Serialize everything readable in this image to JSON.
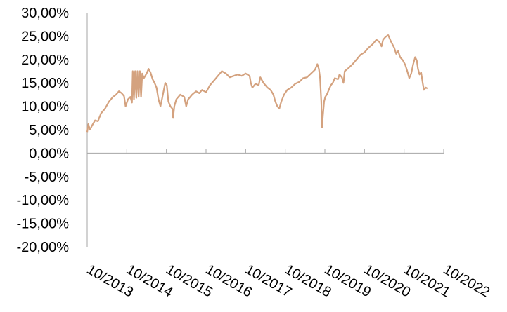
{
  "chart_data": {
    "type": "line",
    "title": "",
    "xlabel": "",
    "ylabel": "",
    "ylim": [
      -0.2,
      0.3
    ],
    "y_ticks": [
      {
        "value": 0.3,
        "label": "30,00%"
      },
      {
        "value": 0.25,
        "label": "25,00%"
      },
      {
        "value": 0.2,
        "label": "20,00%"
      },
      {
        "value": 0.15,
        "label": "15,00%"
      },
      {
        "value": 0.1,
        "label": "10,00%"
      },
      {
        "value": 0.05,
        "label": "5,00%"
      },
      {
        "value": 0.0,
        "label": "0,00%"
      },
      {
        "value": -0.05,
        "label": "-5,00%"
      },
      {
        "value": -0.1,
        "label": "-10,00%"
      },
      {
        "value": -0.15,
        "label": "-15,00%"
      },
      {
        "value": -0.2,
        "label": "-20,00%"
      }
    ],
    "x_ticks": [
      "10/2013",
      "10/2014",
      "10/2015",
      "10/2016",
      "10/2017",
      "10/2018",
      "10/2019",
      "10/2020",
      "10/2021",
      "10/2022"
    ],
    "xlim": [
      2013.75,
      2022.75
    ],
    "grid": false,
    "legend": "none",
    "series": [
      {
        "color": "#d4a27f",
        "points": [
          [
            2013.75,
            0.045
          ],
          [
            2013.78,
            0.062
          ],
          [
            2013.82,
            0.05
          ],
          [
            2013.88,
            0.06
          ],
          [
            2013.95,
            0.07
          ],
          [
            2014.02,
            0.068
          ],
          [
            2014.1,
            0.085
          ],
          [
            2014.2,
            0.095
          ],
          [
            2014.3,
            0.11
          ],
          [
            2014.4,
            0.12
          ],
          [
            2014.48,
            0.125
          ],
          [
            2014.55,
            0.132
          ],
          [
            2014.62,
            0.128
          ],
          [
            2014.68,
            0.122
          ],
          [
            2014.72,
            0.1
          ],
          [
            2014.78,
            0.115
          ],
          [
            2014.84,
            0.12
          ],
          [
            2014.88,
            0.108
          ],
          [
            2014.9,
            0.175
          ],
          [
            2014.93,
            0.115
          ],
          [
            2014.96,
            0.175
          ],
          [
            2014.99,
            0.118
          ],
          [
            2015.02,
            0.175
          ],
          [
            2015.05,
            0.12
          ],
          [
            2015.08,
            0.175
          ],
          [
            2015.11,
            0.12
          ],
          [
            2015.14,
            0.17
          ],
          [
            2015.18,
            0.16
          ],
          [
            2015.25,
            0.17
          ],
          [
            2015.3,
            0.18
          ],
          [
            2015.35,
            0.172
          ],
          [
            2015.4,
            0.158
          ],
          [
            2015.45,
            0.15
          ],
          [
            2015.5,
            0.14
          ],
          [
            2015.55,
            0.115
          ],
          [
            2015.6,
            0.1
          ],
          [
            2015.65,
            0.12
          ],
          [
            2015.72,
            0.15
          ],
          [
            2015.76,
            0.145
          ],
          [
            2015.8,
            0.11
          ],
          [
            2015.85,
            0.1
          ],
          [
            2015.9,
            0.095
          ],
          [
            2015.92,
            0.075
          ],
          [
            2015.95,
            0.1
          ],
          [
            2016.0,
            0.115
          ],
          [
            2016.1,
            0.125
          ],
          [
            2016.2,
            0.12
          ],
          [
            2016.25,
            0.1
          ],
          [
            2016.3,
            0.115
          ],
          [
            2016.4,
            0.125
          ],
          [
            2016.5,
            0.132
          ],
          [
            2016.58,
            0.128
          ],
          [
            2016.65,
            0.135
          ],
          [
            2016.75,
            0.13
          ],
          [
            2016.85,
            0.145
          ],
          [
            2016.95,
            0.155
          ],
          [
            2017.05,
            0.165
          ],
          [
            2017.15,
            0.175
          ],
          [
            2017.25,
            0.17
          ],
          [
            2017.35,
            0.162
          ],
          [
            2017.45,
            0.165
          ],
          [
            2017.55,
            0.168
          ],
          [
            2017.65,
            0.165
          ],
          [
            2017.75,
            0.17
          ],
          [
            2017.85,
            0.165
          ],
          [
            2017.88,
            0.15
          ],
          [
            2017.92,
            0.14
          ],
          [
            2018.0,
            0.148
          ],
          [
            2018.08,
            0.145
          ],
          [
            2018.12,
            0.162
          ],
          [
            2018.2,
            0.15
          ],
          [
            2018.3,
            0.14
          ],
          [
            2018.38,
            0.135
          ],
          [
            2018.45,
            0.125
          ],
          [
            2018.5,
            0.11
          ],
          [
            2018.55,
            0.1
          ],
          [
            2018.6,
            0.095
          ],
          [
            2018.65,
            0.11
          ],
          [
            2018.72,
            0.125
          ],
          [
            2018.8,
            0.135
          ],
          [
            2018.9,
            0.14
          ],
          [
            2019.0,
            0.148
          ],
          [
            2019.1,
            0.152
          ],
          [
            2019.2,
            0.16
          ],
          [
            2019.3,
            0.162
          ],
          [
            2019.4,
            0.17
          ],
          [
            2019.5,
            0.178
          ],
          [
            2019.56,
            0.19
          ],
          [
            2019.6,
            0.18
          ],
          [
            2019.63,
            0.16
          ],
          [
            2019.66,
            0.11
          ],
          [
            2019.68,
            0.055
          ],
          [
            2019.7,
            0.08
          ],
          [
            2019.73,
            0.11
          ],
          [
            2019.76,
            0.12
          ],
          [
            2019.8,
            0.125
          ],
          [
            2019.85,
            0.135
          ],
          [
            2019.9,
            0.145
          ],
          [
            2019.95,
            0.15
          ],
          [
            2020.0,
            0.16
          ],
          [
            2020.08,
            0.158
          ],
          [
            2020.12,
            0.168
          ],
          [
            2020.18,
            0.162
          ],
          [
            2020.22,
            0.15
          ],
          [
            2020.25,
            0.175
          ],
          [
            2020.35,
            0.182
          ],
          [
            2020.45,
            0.19
          ],
          [
            2020.55,
            0.2
          ],
          [
            2020.65,
            0.21
          ],
          [
            2020.75,
            0.215
          ],
          [
            2020.85,
            0.225
          ],
          [
            2020.95,
            0.232
          ],
          [
            2021.05,
            0.242
          ],
          [
            2021.12,
            0.238
          ],
          [
            2021.18,
            0.228
          ],
          [
            2021.22,
            0.242
          ],
          [
            2021.28,
            0.248
          ],
          [
            2021.35,
            0.252
          ],
          [
            2021.42,
            0.238
          ],
          [
            2021.5,
            0.225
          ],
          [
            2021.55,
            0.212
          ],
          [
            2021.6,
            0.218
          ],
          [
            2021.65,
            0.205
          ],
          [
            2021.72,
            0.198
          ],
          [
            2021.78,
            0.188
          ],
          [
            2021.83,
            0.175
          ],
          [
            2021.88,
            0.16
          ],
          [
            2021.93,
            0.17
          ],
          [
            2021.98,
            0.19
          ],
          [
            2022.03,
            0.205
          ],
          [
            2022.07,
            0.198
          ],
          [
            2022.1,
            0.18
          ],
          [
            2022.14,
            0.168
          ],
          [
            2022.18,
            0.172
          ],
          [
            2022.22,
            0.15
          ],
          [
            2022.25,
            0.135
          ],
          [
            2022.3,
            0.14
          ],
          [
            2022.34,
            0.138
          ]
        ]
      }
    ]
  }
}
